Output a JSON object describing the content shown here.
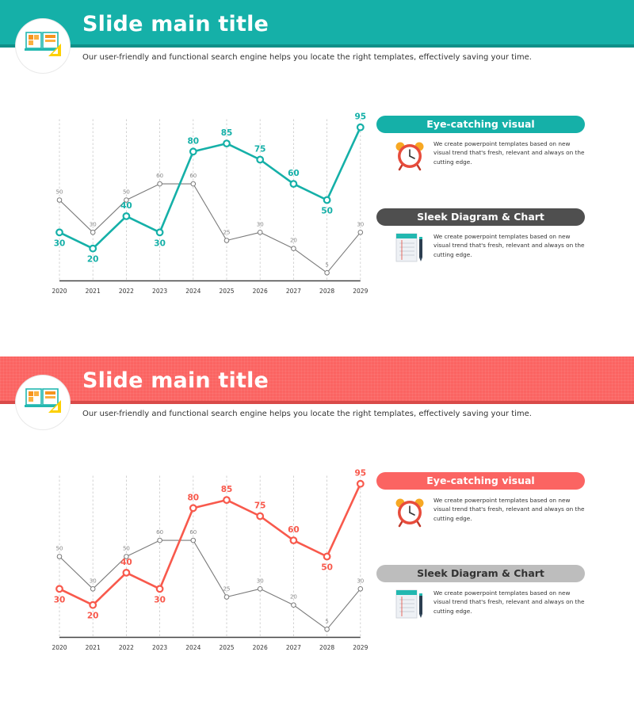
{
  "slides": [
    {
      "title": "Slide main title",
      "subtitle": "Our user-friendly and functional search engine helps you locate the right templates, effectively saving your time.",
      "accent": "#15b0a8",
      "info": [
        {
          "heading": "Eye-catching visual",
          "text": "We create powerpoint templates based on new visual trend that's fresh, relevant and always on the cutting edge.",
          "color": "#15b0a8",
          "icon": "alarm-clock-icon"
        },
        {
          "heading": "Sleek Diagram & Chart",
          "text": "We create powerpoint templates based on new visual trend that's fresh, relevant and always on the cutting edge.",
          "color": "#4f4f4f",
          "icon": "notepad-pen-icon"
        }
      ]
    },
    {
      "title": "Slide main title",
      "subtitle": "Our user-friendly and functional search engine helps you locate the right templates, effectively saving your time.",
      "accent": "#fb6462",
      "info": [
        {
          "heading": "Eye-catching visual",
          "text": "We create powerpoint templates based on new visual trend that's fresh, relevant and always on the cutting edge.",
          "color": "#fb6462",
          "icon": "alarm-clock-icon"
        },
        {
          "heading": "Sleek Diagram & Chart",
          "text": "We create powerpoint templates based on new visual trend that's fresh, relevant and always on the cutting edge.",
          "color": "#bdbdbd",
          "icon": "notepad-pen-icon"
        }
      ]
    }
  ],
  "chart_data": [
    {
      "type": "line",
      "x": [
        "2020",
        "2021",
        "2022",
        "2023",
        "2024",
        "2025",
        "2026",
        "2027",
        "2028",
        "2029"
      ],
      "series": [
        {
          "values": [
            30,
            20,
            40,
            30,
            80,
            85,
            75,
            60,
            50,
            95
          ],
          "color": "#15b0a8"
        },
        {
          "values": [
            50,
            30,
            50,
            60,
            60,
            25,
            30,
            20,
            5,
            30
          ],
          "color": "#7a7a7a"
        }
      ],
      "ylim": [
        0,
        100
      ],
      "grid": "vertical dashed"
    },
    {
      "type": "line",
      "x": [
        "2020",
        "2021",
        "2022",
        "2023",
        "2024",
        "2025",
        "2026",
        "2027",
        "2028",
        "2029"
      ],
      "series": [
        {
          "values": [
            30,
            20,
            40,
            30,
            80,
            85,
            75,
            60,
            50,
            95
          ],
          "color": "#f8594c"
        },
        {
          "values": [
            50,
            30,
            50,
            60,
            60,
            25,
            30,
            20,
            5,
            30
          ],
          "color": "#7a7a7a"
        }
      ],
      "ylim": [
        0,
        100
      ],
      "grid": "vertical dashed"
    }
  ]
}
